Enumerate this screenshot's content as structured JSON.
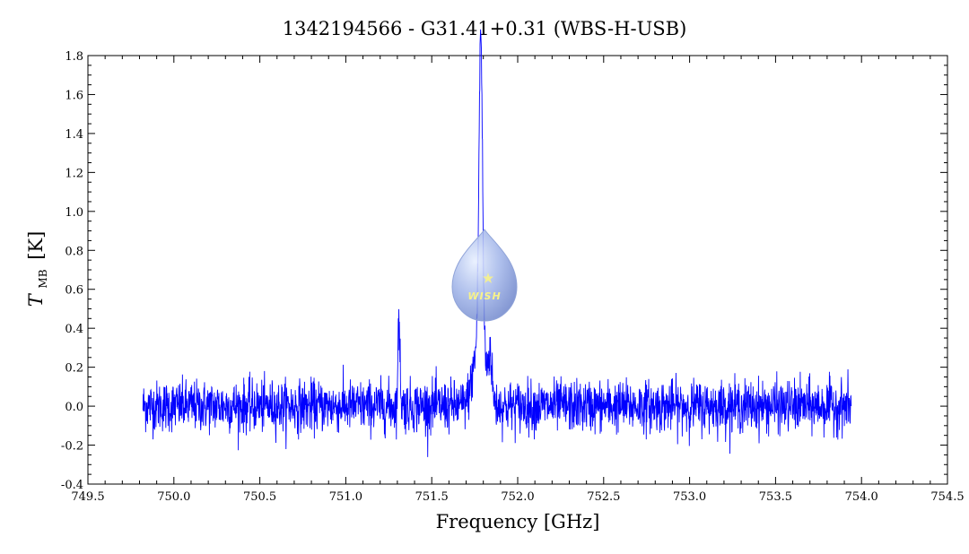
{
  "chart_data": {
    "type": "line",
    "title": "1342194566 - G31.41+0.31 (WBS-H-USB)",
    "xlabel": "Frequency [GHz]",
    "ylabel_main": "T",
    "ylabel_sub": "MB",
    "ylabel_unit": "[K]",
    "xlim": [
      749.5,
      754.5
    ],
    "ylim": [
      -0.4,
      1.8
    ],
    "x_ticks": [
      "749.5",
      "750.0",
      "750.5",
      "751.0",
      "751.5",
      "752.0",
      "752.5",
      "753.0",
      "753.5",
      "754.0",
      "754.5"
    ],
    "y_ticks": [
      "-0.4",
      "-0.2",
      "0.0",
      "0.2",
      "0.4",
      "0.6",
      "0.8",
      "1.0",
      "1.2",
      "1.4",
      "1.6",
      "1.8"
    ],
    "grid": false,
    "series": [
      {
        "color": "#0000ff",
        "x_range": [
          749.82,
          753.94
        ],
        "baseline": 0.0,
        "noise_rms": 0.065,
        "features": [
          {
            "x": 751.31,
            "peak": 0.44,
            "width": 0.006
          },
          {
            "x": 751.785,
            "peak": 1.58,
            "width": 0.01
          },
          {
            "x": 751.78,
            "peak": 0.35,
            "width": 0.035
          },
          {
            "x": 751.84,
            "peak": 0.2,
            "width": 0.01
          }
        ]
      }
    ],
    "logo_text": "WISH"
  }
}
